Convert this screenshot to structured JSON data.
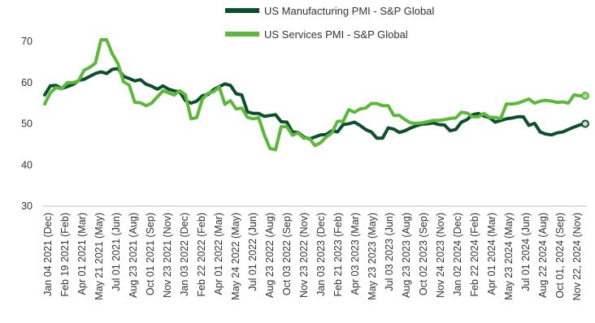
{
  "chart_data": {
    "type": "line",
    "ylim": [
      30,
      70
    ],
    "y_ticks": [
      30,
      40,
      50,
      60,
      70
    ],
    "grid": false,
    "legend_position": "top",
    "x_labels": [
      "Jan 04 2021 (Dec)",
      "Feb 19 2021 (Feb)",
      "Apr 01 2021 (Mar)",
      "May 21 2021 (May)",
      "Jul 01 2021 (Jun)",
      "Aug 23 2021 (Aug)",
      "Oct 01 2021 (Sep)",
      "Nov 23 2021 (Nov)",
      "Jan 03 2022 (Dec)",
      "Feb 22 2022 (Feb)",
      "Apr 01 2022 (Mar)",
      "May 24 2022 (May)",
      "Jul 01 2022 (Jun)",
      "Aug 23 2022 (Aug)",
      "Oct 03 2022 (Sep)",
      "Nov 23 2022 (Nov)",
      "Jan 03 2023 (Dec)",
      "Feb 21 2023 (Feb)",
      "Apr 03 2023 (Mar)",
      "May 23 2023 (May)",
      "Jul 03 2023 (Jun)",
      "Aug 23 2023 (Aug)",
      "Oct 02 2023 (Sep)",
      "Nov 24 2023 (Nov)",
      "Jan 02 2024 (Dec)",
      "Feb 22 2024 (Feb)",
      "Apr 01 2024 (Mar)",
      "May 23 2024 (May)",
      "Jul 01 2024 (Jun)",
      "Aug 22 2024 (Aug)",
      "Oct 01, 2024 (Sep)",
      "Nov 22, 2024 (Nov)"
    ],
    "series": [
      {
        "name": "US Manufacturing PMI - S&P Global",
        "color": "#0b4f2b",
        "values": [
          57.0,
          59.2,
          59.3,
          58.6,
          59.0,
          59.5,
          60.5,
          60.8,
          61.5,
          62.2,
          62.6,
          62.2,
          63.2,
          63.4,
          61.5,
          61.0,
          60.4,
          60.7,
          59.6,
          59.1,
          58.4,
          59.2,
          58.4,
          58.0,
          57.7,
          55.6,
          55.0,
          55.5,
          56.8,
          57.1,
          58.3,
          59.0,
          59.7,
          59.3,
          57.3,
          57.0,
          52.9,
          52.5,
          52.5,
          51.8,
          52.0,
          52.2,
          50.5,
          50.4,
          48.0,
          47.9,
          46.8,
          46.3,
          46.8,
          47.3,
          47.4,
          48.3,
          48.0,
          49.8,
          50.0,
          50.4,
          49.6,
          48.6,
          48.0,
          46.5,
          46.5,
          49.0,
          48.7,
          47.9,
          48.3,
          49.0,
          49.5,
          49.9,
          50.0,
          50.2,
          49.8,
          49.7,
          48.3,
          48.6,
          50.4,
          51.0,
          52.2,
          52.5,
          51.9,
          51.5,
          50.4,
          50.8,
          51.2,
          51.4,
          51.7,
          51.7,
          49.6,
          50.1,
          48.0,
          47.5,
          47.3,
          47.8,
          48.0,
          48.6,
          49.2,
          49.7,
          50.0
        ]
      },
      {
        "name": "US Services PMI - S&P Global",
        "color": "#5cb83b",
        "values": [
          54.8,
          57.5,
          58.8,
          58.5,
          60.0,
          60.0,
          60.4,
          63.0,
          63.7,
          64.7,
          70.4,
          70.4,
          67.0,
          64.6,
          60.2,
          59.4,
          55.2,
          55.1,
          54.4,
          55.0,
          56.5,
          58.0,
          57.5,
          57.0,
          58.0,
          57.0,
          51.2,
          51.5,
          56.0,
          57.4,
          57.8,
          58.9,
          54.7,
          55.6,
          53.6,
          53.8,
          51.6,
          51.2,
          51.5,
          47.3,
          44.0,
          43.7,
          49.3,
          49.3,
          47.2,
          47.8,
          46.5,
          46.5,
          44.7,
          45.4,
          46.8,
          47.8,
          50.6,
          50.6,
          53.4,
          52.8,
          53.6,
          53.8,
          54.9,
          54.9,
          54.4,
          54.4,
          52.0,
          52.0,
          51.0,
          50.2,
          50.1,
          50.2,
          50.5,
          50.8,
          50.8,
          51.0,
          51.3,
          51.4,
          52.8,
          52.6,
          51.7,
          51.7,
          52.5,
          51.6,
          51.5,
          51.3,
          54.8,
          54.8,
          55.0,
          55.5,
          56.0,
          55.0,
          55.5,
          55.7,
          55.5,
          55.2,
          55.3,
          55.0,
          57.0,
          56.8,
          56.8
        ]
      }
    ]
  }
}
